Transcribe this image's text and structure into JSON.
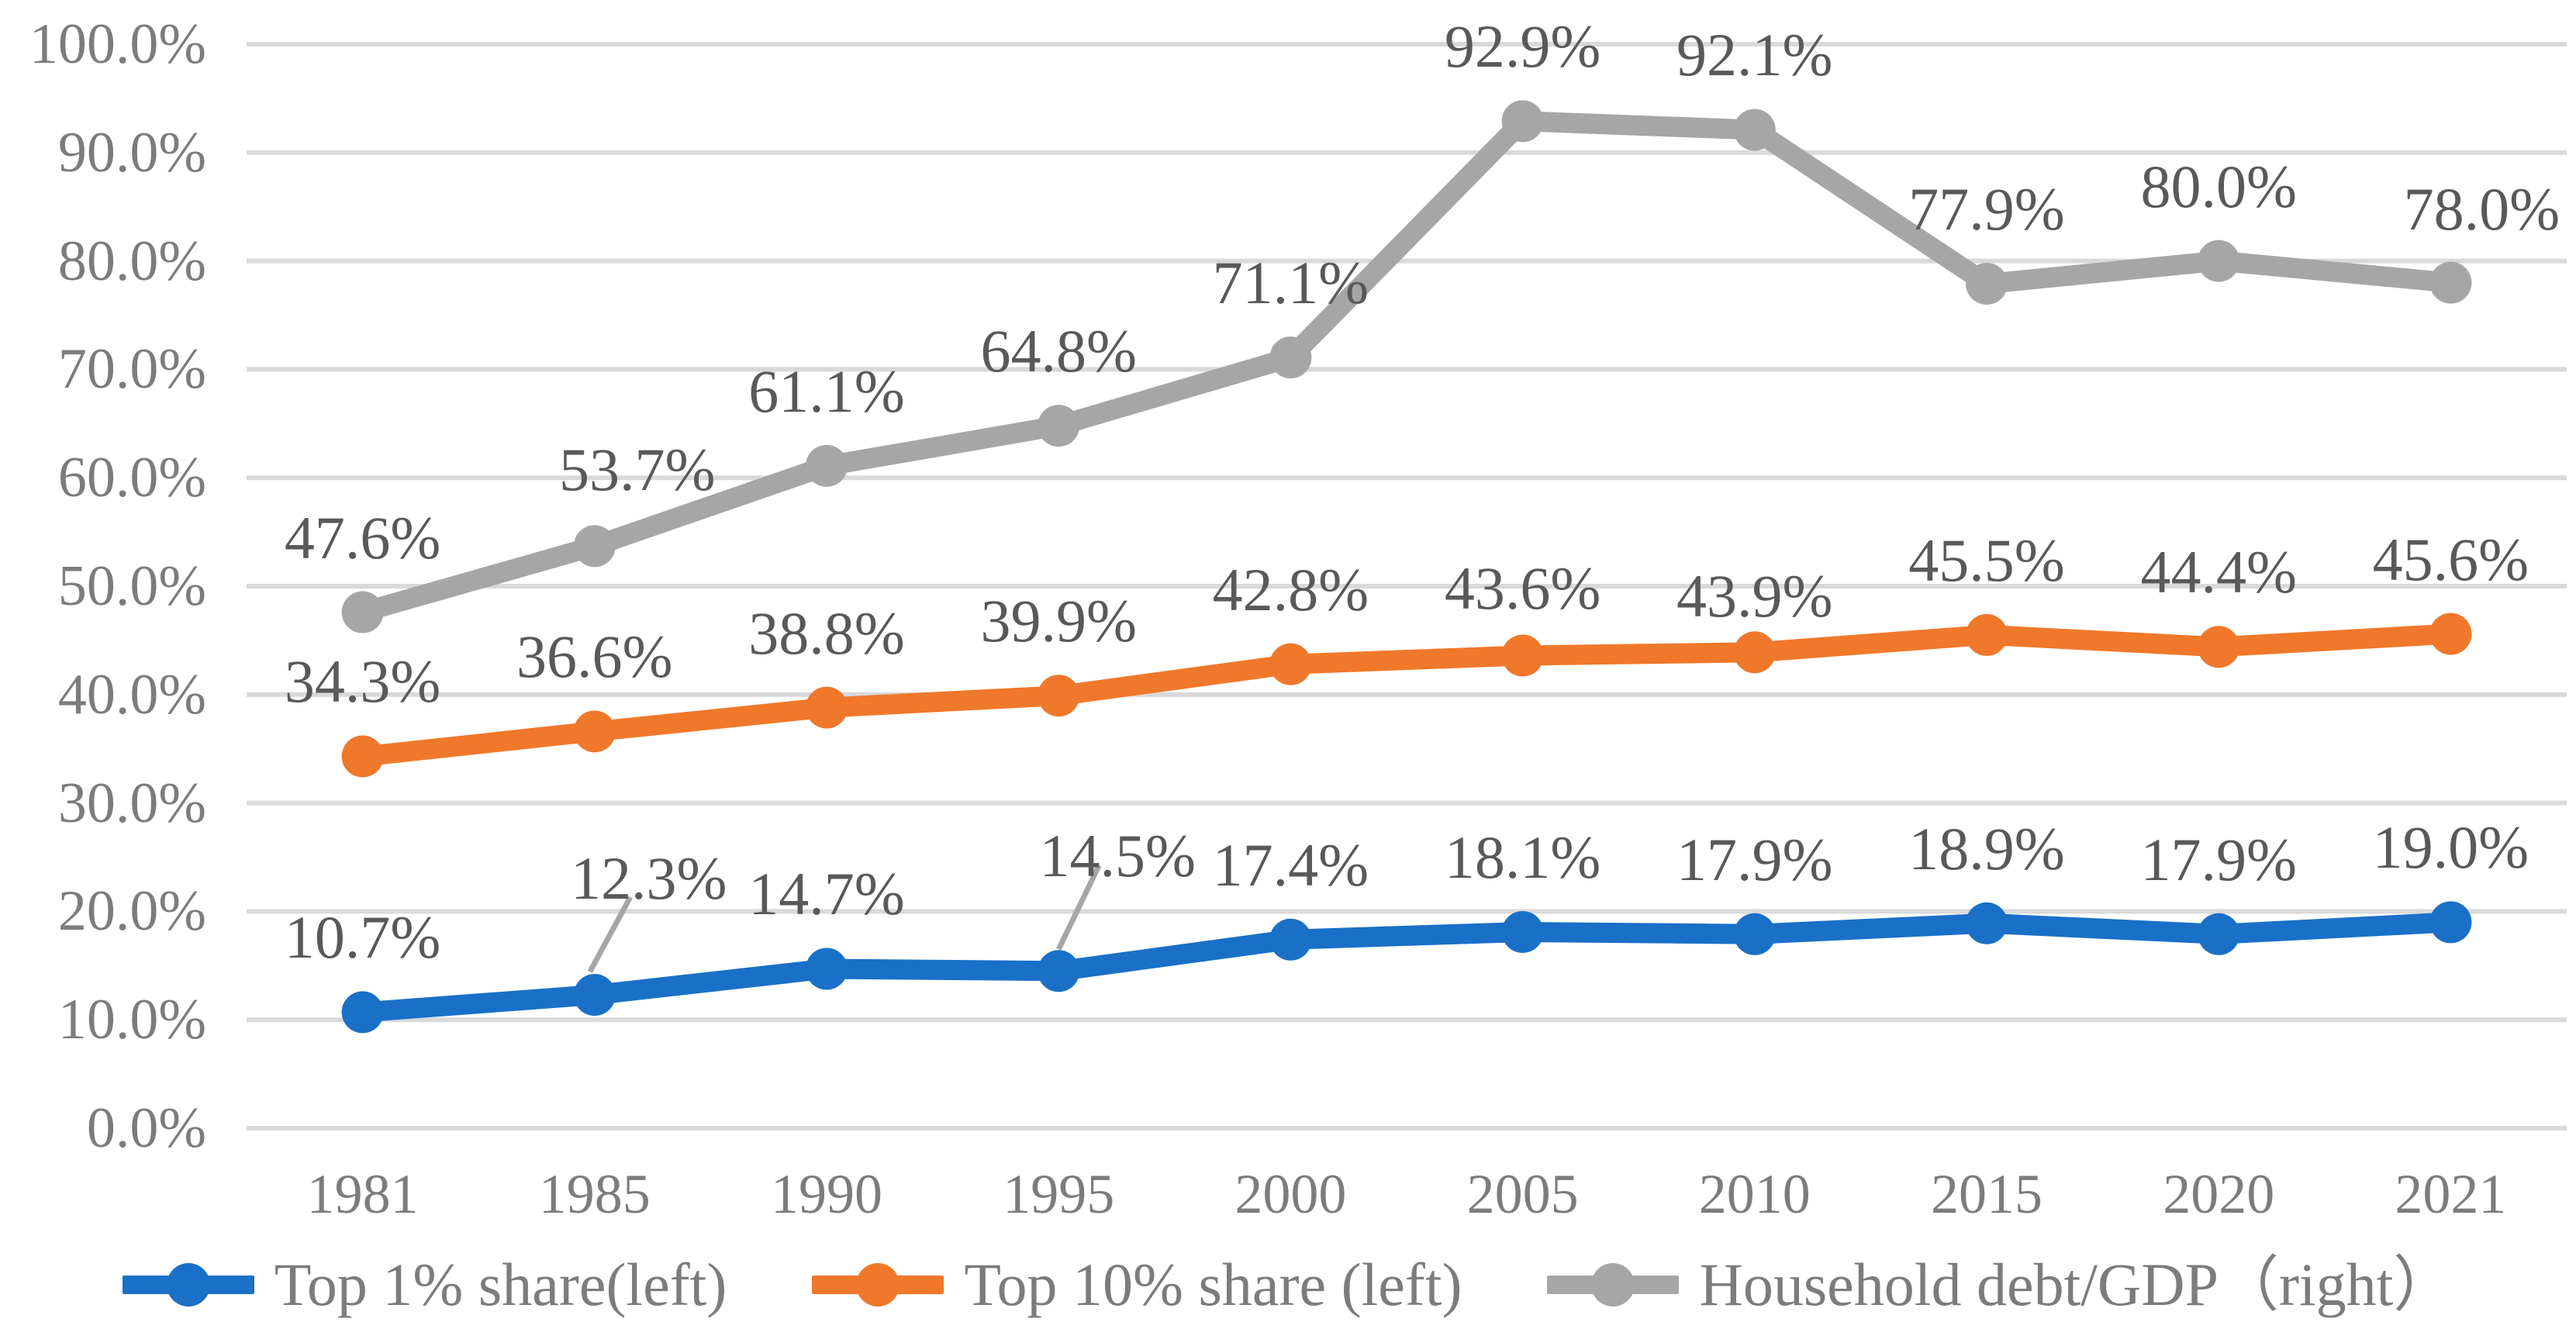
{
  "chart_data": {
    "type": "line",
    "title": "",
    "categories": [
      "1981",
      "1985",
      "1990",
      "1995",
      "2000",
      "2005",
      "2010",
      "2015",
      "2020",
      "2021"
    ],
    "series": [
      {
        "name": "Top 1% share(left)",
        "axis": "left",
        "color": "#1A70C7",
        "values": [
          10.7,
          12.3,
          14.7,
          14.5,
          17.4,
          18.1,
          17.9,
          18.9,
          17.9,
          19.0
        ],
        "labels": [
          "10.7%",
          "12.3%",
          "14.7%",
          "14.5%",
          "17.4%",
          "18.1%",
          "17.9%",
          "18.9%",
          "17.9%",
          "19.0%"
        ]
      },
      {
        "name": "Top 10% share (left)",
        "axis": "left",
        "color": "#F0782A",
        "values": [
          34.3,
          36.6,
          38.8,
          39.9,
          42.8,
          43.6,
          43.9,
          45.5,
          44.4,
          45.6
        ],
        "labels": [
          "34.3%",
          "36.6%",
          "38.8%",
          "39.9%",
          "42.8%",
          "43.6%",
          "43.9%",
          "45.5%",
          "44.4%",
          "45.6%"
        ]
      },
      {
        "name": "Household debt/GDP（right）",
        "axis": "right",
        "color": "#A6A6A6",
        "values": [
          47.6,
          53.7,
          61.1,
          64.8,
          71.1,
          92.9,
          92.1,
          77.9,
          80.0,
          78.0
        ],
        "labels": [
          "47.6%",
          "53.7%",
          "61.1%",
          "64.8%",
          "71.1%",
          "92.9%",
          "92.1%",
          "77.9%",
          "80.0%",
          "78.0%"
        ]
      }
    ],
    "y_axis": {
      "min": 0,
      "max": 100,
      "step": 10,
      "tick_labels": [
        "0.0%",
        "10.0%",
        "20.0%",
        "30.0%",
        "40.0%",
        "50.0%",
        "60.0%",
        "70.0%",
        "80.0%",
        "90.0%",
        "100.0%"
      ]
    },
    "x_axis": {
      "tick_labels": [
        "1981",
        "1985",
        "1990",
        "1995",
        "2000",
        "2005",
        "2010",
        "2015",
        "2020",
        "2021"
      ]
    },
    "grid": true,
    "data_labels": true,
    "marker": "circle",
    "legend_position": "bottom"
  },
  "colors": {
    "grid": "#D9D9D9",
    "axis_text": "#7C7C7C",
    "data_label_text": "#595959",
    "legend_text": "#7C7C7C",
    "leader_line": "#A6A6A6",
    "background": "#FFFFFF"
  }
}
